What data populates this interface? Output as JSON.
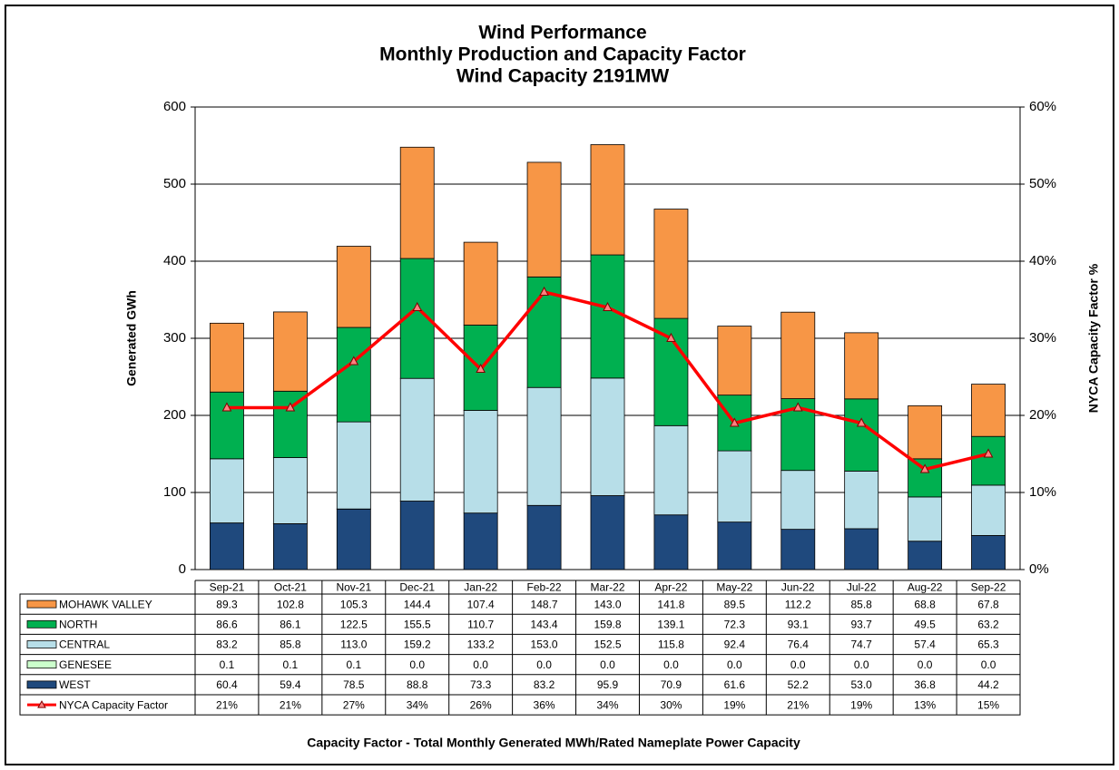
{
  "chart_data": {
    "type": "bar",
    "title": [
      "Wind Performance",
      "Monthly Production and Capacity Factor",
      "Wind Capacity 2191MW"
    ],
    "y_label": "Generated GWh",
    "y2_label": "NYCA  Capacity  Factor %",
    "footnote": "Capacity Factor  - Total Monthly Generated MWh/Rated Nameplate Power Capacity",
    "stacked": true,
    "categories": [
      "Sep-21",
      "Oct-21",
      "Nov-21",
      "Dec-21",
      "Jan-22",
      "Feb-22",
      "Mar-22",
      "Apr-22",
      "May-22",
      "Jun-22",
      "Jul-22",
      "Aug-22",
      "Sep-22"
    ],
    "ylim": [
      0,
      600
    ],
    "yticks": [
      0,
      100,
      200,
      300,
      400,
      500,
      600
    ],
    "y2lim": [
      0,
      60
    ],
    "y2ticks": [
      {
        "value": 0,
        "label": "0%"
      },
      {
        "value": 10,
        "label": "10%"
      },
      {
        "value": 20,
        "label": "20%"
      },
      {
        "value": 30,
        "label": "30%"
      },
      {
        "value": 40,
        "label": "40%"
      },
      {
        "value": 50,
        "label": "50%"
      },
      {
        "value": 60,
        "label": "60%"
      }
    ],
    "grid": true,
    "series": [
      {
        "name": "WEST",
        "color": "#1f497d",
        "values": [
          60.4,
          59.4,
          78.5,
          88.8,
          73.3,
          83.2,
          95.9,
          70.9,
          61.6,
          52.2,
          53.0,
          36.8,
          44.2
        ],
        "value_labels": [
          "60.4",
          "59.4",
          "78.5",
          "88.8",
          "73.3",
          "83.2",
          "95.9",
          "70.9",
          "61.6",
          "52.2",
          "53.0",
          "36.8",
          "44.2"
        ]
      },
      {
        "name": "GENESEE",
        "color": "#ccffcc",
        "values": [
          0.1,
          0.1,
          0.1,
          0.0,
          0.0,
          0.0,
          0.0,
          0.0,
          0.0,
          0.0,
          0.0,
          0.0,
          0.0
        ],
        "value_labels": [
          "0.1",
          "0.1",
          "0.1",
          "0.0",
          "0.0",
          "0.0",
          "0.0",
          "0.0",
          "0.0",
          "0.0",
          "0.0",
          "0.0",
          "0.0"
        ]
      },
      {
        "name": "CENTRAL",
        "color": "#b7dee8",
        "values": [
          83.2,
          85.8,
          113.0,
          159.2,
          133.2,
          153.0,
          152.5,
          115.8,
          92.4,
          76.4,
          74.7,
          57.4,
          65.3
        ],
        "value_labels": [
          "83.2",
          "85.8",
          "113.0",
          "159.2",
          "133.2",
          "153.0",
          "152.5",
          "115.8",
          "92.4",
          "76.4",
          "74.7",
          "57.4",
          "65.3"
        ]
      },
      {
        "name": "NORTH",
        "color": "#00b050",
        "values": [
          86.6,
          86.1,
          122.5,
          155.5,
          110.7,
          143.4,
          159.8,
          139.1,
          72.3,
          93.1,
          93.7,
          49.5,
          63.2
        ],
        "value_labels": [
          "86.6",
          "86.1",
          "122.5",
          "155.5",
          "110.7",
          "143.4",
          "159.8",
          "139.1",
          "72.3",
          "93.1",
          "93.7",
          "49.5",
          "63.2"
        ]
      },
      {
        "name": "MOHAWK VALLEY",
        "color": "#f79646",
        "values": [
          89.3,
          102.8,
          105.3,
          144.4,
          107.4,
          148.7,
          143.0,
          141.8,
          89.5,
          112.2,
          85.8,
          68.8,
          67.8
        ],
        "value_labels": [
          "89.3",
          "102.8",
          "105.3",
          "144.4",
          "107.4",
          "148.7",
          "143.0",
          "141.8",
          "89.5",
          "112.2",
          "85.8",
          "68.8",
          "67.8"
        ]
      },
      {
        "name": "NYCA Capacity Factor",
        "type": "line",
        "axis": "y2",
        "color": "#ff0000",
        "values": [
          21,
          21,
          27,
          34,
          26,
          36,
          34,
          30,
          19,
          21,
          19,
          13,
          15
        ],
        "value_labels": [
          "21%",
          "21%",
          "27%",
          "34%",
          "26%",
          "36%",
          "34%",
          "30%",
          "19%",
          "21%",
          "19%",
          "13%",
          "15%"
        ]
      }
    ]
  }
}
